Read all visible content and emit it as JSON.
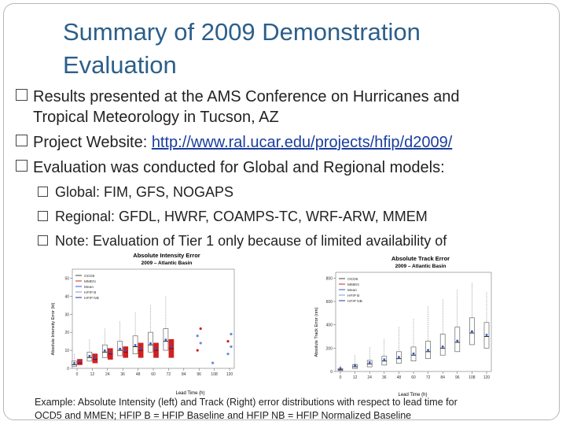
{
  "slide": {
    "title_line1": "Summary of 2009 Demonstration",
    "title_line2": "Evaluation",
    "bullets": [
      {
        "text_line1": "Results presented at the AMS Conference on Hurricanes and",
        "text_line2": "Tropical Meteorology in Tucson, AZ"
      },
      {
        "prefix": "Project Website: ",
        "link": "http://www.ral.ucar.edu/projects/hfip/d2009/"
      },
      {
        "text": "Evaluation was conducted for Global and Regional models:"
      }
    ],
    "sub_bullets": [
      "Global: FIM, GFS, NOGAPS",
      "Regional: GFDL, HWRF, COAMPS-TC, WRF-ARW, MMEM",
      "Note: Evaluation of Tier 1 only because of limited availability of"
    ],
    "caption_line1": "Example: Absolute Intensity (left) and Track (Right) error distributions with respect to lead time for",
    "caption_line2": "OCD5 and MMEN; HFIP B = HFIP Baseline and HFIP NB = HFIP Normalized Baseline"
  },
  "chart_data": [
    {
      "type": "box",
      "title": "Absolute Intensity Error",
      "subtitle": "2009 – Atlantic Basin",
      "xlabel": "Lead Time (h)",
      "ylabel": "Absolute Intensity Error (kt)",
      "categories": [
        "0",
        "12",
        "24",
        "36",
        "48",
        "60",
        "72",
        "84",
        "96",
        "108",
        "120"
      ],
      "yticks": [
        "0",
        "10",
        "20",
        "30",
        "40",
        "50"
      ],
      "ylim": [
        0,
        55
      ],
      "legend": [
        "OCD5",
        "MMEN",
        "Mean",
        "HFIP B",
        "HFIP NB"
      ],
      "colors": {
        "ocd5": "#555555",
        "mmen": "#d02020",
        "mean": "#3355cc",
        "hfipb": "#7a9ad8",
        "hfipnb": "#2233aa"
      },
      "series": [
        {
          "name": "OCD5",
          "median": [
            2,
            6,
            9,
            10,
            12,
            13,
            15,
            0,
            0,
            0,
            0
          ],
          "q1": [
            1,
            4,
            6,
            7,
            8,
            9,
            10,
            0,
            0,
            0,
            0
          ],
          "q3": [
            4,
            9,
            13,
            15,
            18,
            20,
            22,
            0,
            0,
            0,
            0
          ],
          "max": [
            8,
            16,
            22,
            26,
            31,
            35,
            40,
            0,
            0,
            0,
            0
          ]
        },
        {
          "name": "MMEN",
          "median": [
            3,
            5,
            8,
            9,
            10,
            10,
            11,
            0,
            0,
            0,
            0
          ],
          "q1": [
            2,
            3,
            5,
            6,
            6,
            6,
            6,
            0,
            0,
            0,
            0
          ],
          "q3": [
            5,
            8,
            11,
            12,
            14,
            14,
            16,
            0,
            0,
            0,
            0
          ]
        }
      ],
      "extra_points": {
        "x": [
          96,
          96,
          96,
          96,
          108,
          120,
          120,
          120,
          120
        ],
        "y": [
          10,
          14,
          18,
          22,
          3,
          12,
          15,
          19,
          8
        ]
      }
    },
    {
      "type": "box",
      "title": "Absolute Track Error",
      "subtitle": "2009 – Atlantic Basin",
      "xlabel": "Lead Time (h)",
      "ylabel": "Absolute Track Error (nm)",
      "categories": [
        "0",
        "12",
        "24",
        "36",
        "48",
        "60",
        "72",
        "84",
        "96",
        "108",
        "120"
      ],
      "yticks": [
        "0",
        "200",
        "400",
        "600",
        "800"
      ],
      "ylim": [
        0,
        850
      ],
      "legend": [
        "OCD5",
        "MMEN",
        "Mean",
        "HFIP B",
        "HFIP NB"
      ],
      "series": [
        {
          "name": "OCD5",
          "median": [
            15,
            40,
            65,
            90,
            110,
            140,
            170,
            200,
            250,
            330,
            300
          ],
          "q1": [
            8,
            25,
            40,
            55,
            70,
            90,
            110,
            140,
            170,
            230,
            200
          ],
          "q3": [
            25,
            60,
            95,
            130,
            170,
            210,
            260,
            320,
            380,
            460,
            420
          ],
          "max": [
            50,
            140,
            210,
            280,
            380,
            450,
            560,
            620,
            700,
            760,
            680
          ]
        }
      ]
    }
  ]
}
